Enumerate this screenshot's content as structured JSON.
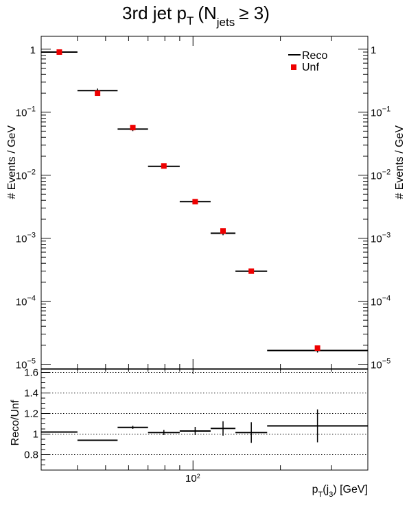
{
  "chart_data": [
    {
      "type": "scatter",
      "title": "3rd jet p",
      "title_sub": "T",
      "title_paren": "(N",
      "title_paren_sub": "jets",
      "title_tail": "≥ 3)",
      "ylabel": "# Events / GeV",
      "xlim": [
        30,
        400
      ],
      "ylim": [
        8.5e-06,
        1.6
      ],
      "y_scale": "log",
      "x_scale": "log",
      "x_tick_label": "10",
      "x_tick_label_exp": "2",
      "y_tick_labels": [
        {
          "value": 1,
          "base": "1",
          "exp": ""
        },
        {
          "value": 0.1,
          "base": "10",
          "exp": "−1"
        },
        {
          "value": 0.01,
          "base": "10",
          "exp": "−2"
        },
        {
          "value": 0.001,
          "base": "10",
          "exp": "−3"
        },
        {
          "value": 0.0001,
          "base": "10",
          "exp": "−4"
        },
        {
          "value": 1e-05,
          "base": "10",
          "exp": "−5"
        }
      ],
      "legend": {
        "position": "top-right",
        "reco": "Reco",
        "unf": "Unf"
      },
      "bins": [
        {
          "xlo": 30,
          "xhi": 40,
          "reco": 0.9,
          "unf": 0.9
        },
        {
          "xlo": 40,
          "xhi": 55,
          "reco": 0.22,
          "unf": 0.2
        },
        {
          "xlo": 55,
          "xhi": 70,
          "reco": 0.054,
          "unf": 0.057
        },
        {
          "xlo": 70,
          "xhi": 90,
          "reco": 0.0138,
          "unf": 0.014
        },
        {
          "xlo": 90,
          "xhi": 115,
          "reco": 0.0038,
          "unf": 0.0038
        },
        {
          "xlo": 115,
          "xhi": 140,
          "reco": 0.0012,
          "unf": 0.0013
        },
        {
          "xlo": 140,
          "xhi": 180,
          "reco": 0.0003,
          "unf": 0.0003
        },
        {
          "xlo": 180,
          "xhi": 400,
          "reco": 1.65e-05,
          "unf": 1.8e-05
        }
      ],
      "colors": {
        "reco": "#000000",
        "unf": "#ee0000"
      }
    },
    {
      "type": "scatter",
      "ylabel": "Reco/Unf",
      "xlabel": "p",
      "xlabel_sub": "T",
      "xlabel_mid": "(j",
      "xlabel_sub2": "3",
      "xlabel_tail": ") [GeV]",
      "ylim": [
        0.65,
        1.63
      ],
      "y_ticks": [
        0.8,
        1,
        1.2,
        1.4,
        1.6
      ],
      "y_tick_labels": [
        "0.8",
        "1",
        "1.2",
        "1.4",
        "1.6"
      ],
      "grid_lines": [
        0.8,
        1.0,
        1.2,
        1.4,
        1.6
      ],
      "grid": "dotted",
      "ratio": [
        {
          "xlo": 30,
          "xhi": 40,
          "value": 1.02,
          "err": 0.005
        },
        {
          "xlo": 40,
          "xhi": 55,
          "value": 0.94,
          "err": 0.005
        },
        {
          "xlo": 55,
          "xhi": 70,
          "value": 1.065,
          "err": 0.015
        },
        {
          "xlo": 70,
          "xhi": 90,
          "value": 1.015,
          "err": 0.025
        },
        {
          "xlo": 90,
          "xhi": 115,
          "value": 1.03,
          "err": 0.04
        },
        {
          "xlo": 115,
          "xhi": 140,
          "value": 1.055,
          "err": 0.07
        },
        {
          "xlo": 140,
          "xhi": 180,
          "value": 1.015,
          "err": 0.1
        },
        {
          "xlo": 180,
          "xhi": 400,
          "value": 1.08,
          "err": 0.16
        }
      ]
    }
  ]
}
